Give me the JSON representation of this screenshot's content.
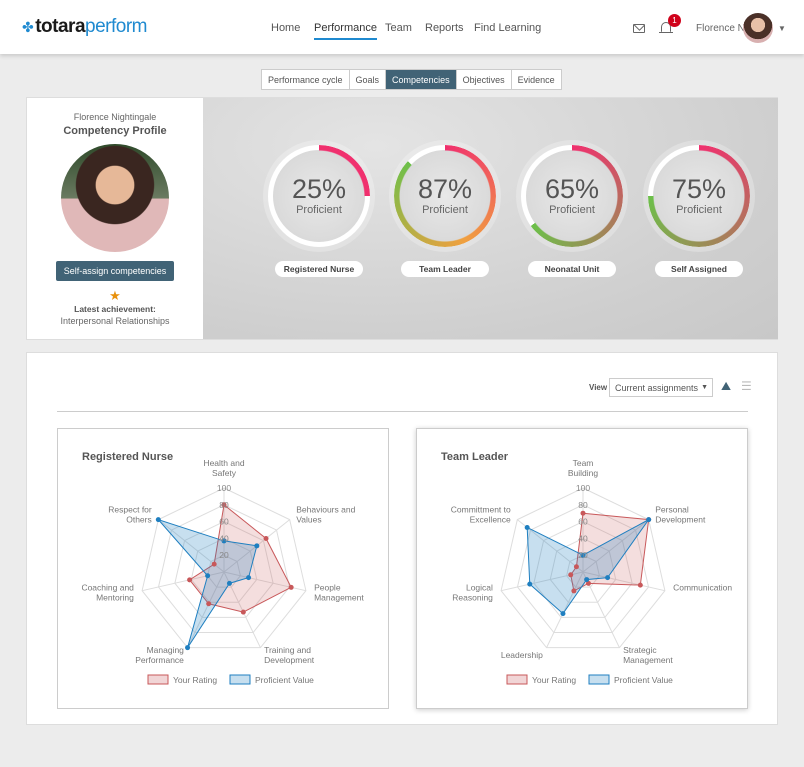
{
  "header": {
    "logo_bold": "totara",
    "logo_light": "perform",
    "nav": [
      "Home",
      "Performance",
      "Team",
      "Reports",
      "Find Learning"
    ],
    "active_nav": "Performance",
    "notification_count": "1",
    "user_name": "Florence N"
  },
  "tabs": [
    "Performance cycle",
    "Goals",
    "Competencies",
    "Objectives",
    "Evidence"
  ],
  "active_tab": "Competencies",
  "profile": {
    "name": "Florence Nightingale",
    "title": "Competency Profile",
    "button": "Self-assign competencies",
    "achievement_label": "Latest achievement:",
    "achievement_value": "Interpersonal Relationships"
  },
  "rings": [
    {
      "pct": 25,
      "pct_label": "25%",
      "sub": "Proficient",
      "label": "Registered Nurse",
      "colors": [
        "#f0306e",
        "#f0306e"
      ]
    },
    {
      "pct": 87,
      "pct_label": "87%",
      "sub": "Proficient",
      "label": "Team Leader",
      "colors": [
        "#f0306e",
        "#f0a040",
        "#6cc04a"
      ]
    },
    {
      "pct": 65,
      "pct_label": "65%",
      "sub": "Proficient",
      "label": "Neonatal Unit",
      "colors": [
        "#f0306e",
        "#6cc04a"
      ]
    },
    {
      "pct": 75,
      "pct_label": "75%",
      "sub": "Proficient",
      "label": "Self Assigned",
      "colors": [
        "#f0306e",
        "#6cc04a"
      ]
    }
  ],
  "view": {
    "label": "View",
    "selected": "Current assignments"
  },
  "chart_data": [
    {
      "type": "radar",
      "title": "Registered Nurse",
      "axes": [
        "Health and Safety",
        "Behaviours and Values",
        "People Management",
        "Training and Development",
        "Managing Performance",
        "Coaching and Mentoring",
        "Respect for Others"
      ],
      "ticks": [
        20,
        40,
        60,
        80,
        100
      ],
      "range": [
        0,
        100
      ],
      "series": [
        {
          "name": "Your Rating",
          "color": "#c8585a",
          "values": [
            80,
            64,
            82,
            53,
            42,
            42,
            15
          ]
        },
        {
          "name": "Proficient Value",
          "color": "#1f7fc0",
          "values": [
            37,
            50,
            30,
            15,
            100,
            20,
            100
          ]
        }
      ],
      "legend": "bottom"
    },
    {
      "type": "radar",
      "title": "Team Leader",
      "axes": [
        "Team Building",
        "Personal Development",
        "Communication",
        "Strategic Management",
        "Leadership",
        "Logical Reasoning",
        "Committment to Excellence"
      ],
      "ticks": [
        20,
        40,
        60,
        80,
        100
      ],
      "range": [
        0,
        100
      ],
      "series": [
        {
          "name": "Your Rating",
          "color": "#c8585a",
          "values": [
            70,
            100,
            70,
            15,
            25,
            15,
            10
          ]
        },
        {
          "name": "Proficient Value",
          "color": "#1f7fc0",
          "values": [
            20,
            100,
            30,
            10,
            55,
            65,
            85
          ]
        }
      ],
      "legend": "bottom"
    }
  ]
}
